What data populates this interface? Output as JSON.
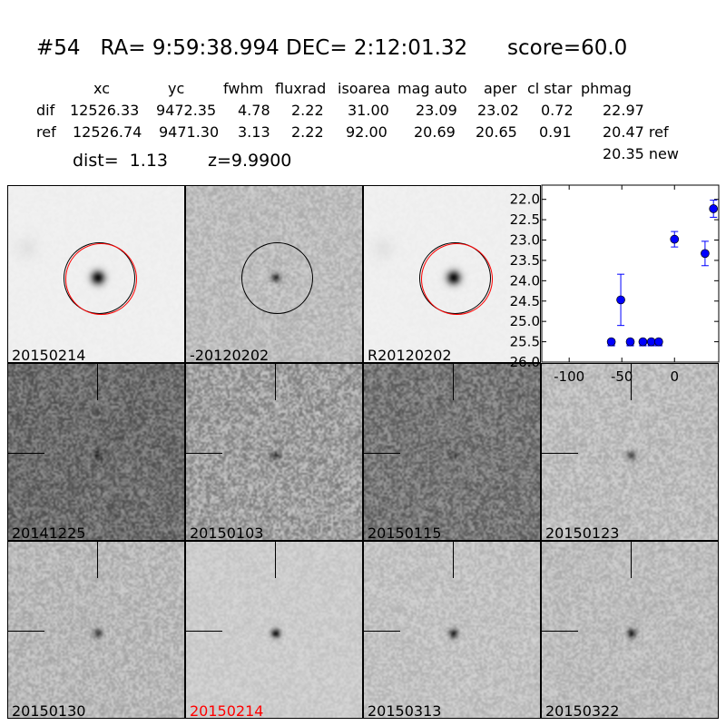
{
  "header": {
    "title": "#54   RA= 9:59:38.994 DEC= 2:12:01.32      score=60.0"
  },
  "table": {
    "columns": [
      "xc",
      "yc",
      "fwhm",
      "fluxrad",
      "isoarea",
      "mag auto",
      "aper",
      "cl star",
      "phmag"
    ],
    "rows": [
      {
        "label": "dif",
        "values": [
          "12526.33",
          "9472.35",
          "4.78",
          "2.22",
          "31.00",
          "23.09",
          "23.02",
          "0.72",
          "22.97"
        ]
      },
      {
        "label": "ref",
        "values": [
          "12526.74",
          "9471.30",
          "3.13",
          "2.22",
          "92.00",
          "20.69",
          "20.65",
          "0.91",
          "20.47 ref"
        ]
      }
    ],
    "extra_phmag": "20.35 new",
    "dist": "dist=  1.13",
    "z": "z=9.9900"
  },
  "stamps": [
    {
      "label": "20150214",
      "kind": "new"
    },
    {
      "label": "-20120202",
      "kind": "diff"
    },
    {
      "label": "R20120202",
      "kind": "ref"
    },
    {
      "label": "20141225",
      "kind": "epoch"
    },
    {
      "label": "20150103",
      "kind": "epoch"
    },
    {
      "label": "20150115",
      "kind": "epoch"
    },
    {
      "label": "20150123",
      "kind": "epoch"
    },
    {
      "label": "20150130",
      "kind": "epoch"
    },
    {
      "label": "20150214",
      "kind": "epoch",
      "highlight": "#ff0000"
    },
    {
      "label": "20150313",
      "kind": "epoch"
    },
    {
      "label": "20150322",
      "kind": "epoch"
    }
  ],
  "colors": {
    "marker": "#0000ff",
    "detection_circle": "#000000",
    "ref_circle": "#ff0000",
    "highlight_label": "#ff0000"
  },
  "chart_data": {
    "type": "scatter",
    "x": [
      -60,
      -51,
      -42,
      -30,
      -22,
      -15,
      0,
      29,
      37
    ],
    "y": [
      25.5,
      24.47,
      25.5,
      25.5,
      25.5,
      25.5,
      22.98,
      23.33,
      22.23
    ],
    "yerr": [
      0,
      0.63,
      0,
      0,
      0,
      0,
      0.19,
      0.3,
      0.21
    ],
    "xlim": [
      -126,
      42
    ],
    "ylim": [
      26.0,
      21.65
    ],
    "y_inverted": true,
    "xticks": [
      "-100",
      "-50",
      "0"
    ],
    "xtick_values": [
      -100,
      -50,
      0
    ],
    "yticks": [
      "22.0",
      "22.5",
      "23.0",
      "23.5",
      "24.0",
      "24.5",
      "25.0",
      "25.5",
      "26.0"
    ],
    "ytick_values": [
      22.0,
      22.5,
      23.0,
      23.5,
      24.0,
      24.5,
      25.0,
      25.5,
      26.0
    ],
    "grid": false
  }
}
